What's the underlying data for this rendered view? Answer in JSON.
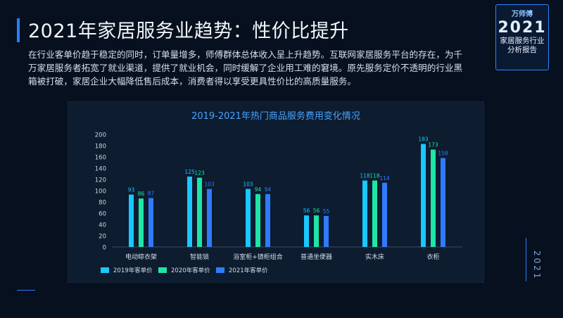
{
  "header": {
    "title": "2021年家居服务业趋势：性价比提升",
    "intro": "在行业客单价趋于稳定的同时，订单量增多，师傅群体总体收入呈上升趋势。互联网家居服务平台的存在，为千万家居服务者拓宽了就业渠道，提供了就业机会，同时缓解了企业用工难的窘境。原先服务定价不透明的行业黑箱被打破，家居企业大幅降低售后成本，消费者得以享受更具性价比的高质量服务。"
  },
  "badge": {
    "brand": "万师傅",
    "year": "2021",
    "line1": "家居服务行业",
    "line2": "分析报告"
  },
  "side_year": "2021",
  "colors": {
    "background": "#06101e",
    "accent": "#2a7dff",
    "series_2019": "#19c8ff",
    "series_2020": "#1ee6a6",
    "series_2021": "#2f7bff"
  },
  "chart_data": {
    "type": "bar",
    "title": "2019-2021年热门商品服务费用变化情况",
    "categories": [
      "电动晾衣架",
      "智能锁",
      "浴室柜+镜柜组合",
      "普通坐便器",
      "实木床",
      "衣柜"
    ],
    "series": [
      {
        "name": "2019年客单价",
        "values": [
          93,
          125,
          103,
          56,
          118,
          183
        ]
      },
      {
        "name": "2020年客单价",
        "values": [
          86,
          123,
          94,
          56,
          118,
          173
        ]
      },
      {
        "name": "2021年客单价",
        "values": [
          87,
          103,
          94,
          55,
          114,
          158
        ]
      }
    ],
    "ylim": [
      0,
      200
    ],
    "yticks": [
      0,
      20,
      40,
      60,
      80,
      100,
      120,
      140,
      160,
      180,
      200
    ],
    "legend_position": "bottom-left",
    "grid": false
  }
}
